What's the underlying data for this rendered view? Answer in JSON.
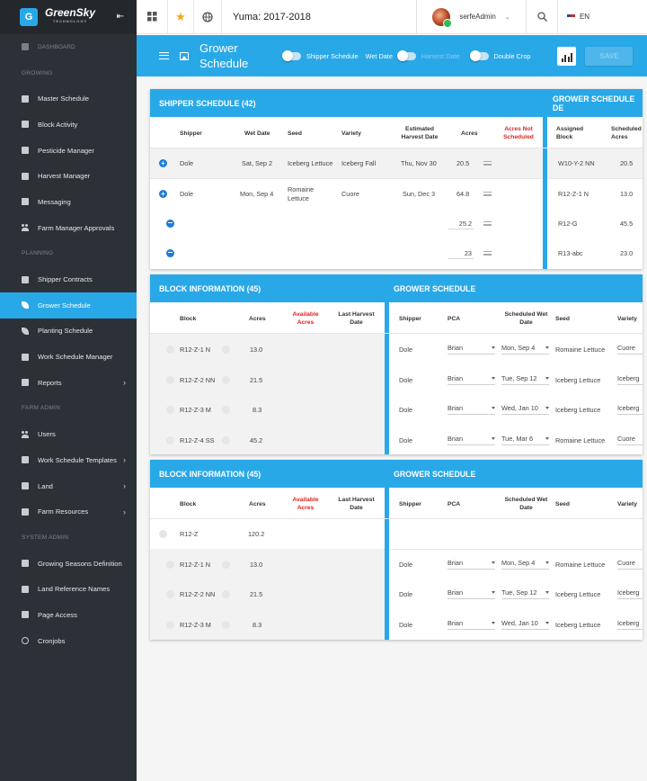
{
  "app": {
    "logo_letter": "G",
    "brand": "GreenSky",
    "brand_sub": "TECHNOLOGY",
    "season": "Yuma: 2017-2018",
    "user": "serfeAdmin",
    "language": "EN"
  },
  "sidebar": {
    "dashboard": "DASHBOARD",
    "sections": {
      "growing": "GROWING",
      "planning": "PLANNING",
      "farm_admin": "FARM ADMIN",
      "system_admin": "SYSTEM ADMIN"
    },
    "growing": [
      "Master Schedule",
      "Block Activity",
      "Pesticide Manager",
      "Harvest Manager",
      "Messaging",
      "Farm Manager Approvals"
    ],
    "planning": [
      "Shipper Contracts",
      "Grower Schedule",
      "Planting Schedule",
      "Work Schedule Manager",
      "Reports"
    ],
    "farm_admin": [
      "Users",
      "Work Schedule Templates",
      "Land",
      "Farm Resources"
    ],
    "system_admin": [
      "Growing Seasons Definition",
      "Land Reference Names",
      "Page Access",
      "Cronjobs"
    ]
  },
  "header": {
    "title_line1": "Grower",
    "title_line2": "Schedule",
    "toggles": {
      "shipper": "Shipper Schedule",
      "wet": "Wet Date",
      "harvest": "Harvest Date",
      "double": "Double Crop"
    },
    "save": "SAVE"
  },
  "shipper_panel": {
    "title": "SHIPPER SCHEDULE (42)",
    "right_title": "GROWER SCHEDULE DE",
    "cols": {
      "shipper": "Shipper",
      "wet_date": "Wet Date",
      "seed": "Seed",
      "variety": "Variety",
      "est_line1": "Estimated",
      "est_line2": "Harvest Date",
      "acres": "Acres",
      "ans_line1": "Acres Not",
      "ans_line2": "Scheduled",
      "ab_line1": "Assigned",
      "ab_line2": "Block",
      "sa_line1": "Scheduled",
      "sa_line2": "Acres"
    },
    "rows": [
      {
        "shipper": "Dole",
        "wet": "Sat, Sep 2",
        "seed": "Iceberg Lettuce",
        "seed2": "",
        "variety": "Iceberg Fall",
        "harvest": "Thu, Nov 30",
        "acres": "20.5",
        "block": "W10-Y-2 NN",
        "sched": "20.5"
      },
      {
        "shipper": "Dole",
        "wet": "Mon, Sep 4",
        "seed": "Romaine",
        "seed2": "Lettuce",
        "variety": "Cuore",
        "harvest": "Sun, Dec 3",
        "acres": "64.8",
        "block": "R12-Z-1 N",
        "sched": "13.0"
      },
      {
        "acres": "25.2",
        "block": "R12-G",
        "sched": "45.5"
      },
      {
        "acres": "23",
        "block": "R13-abc",
        "sched": "23.0"
      }
    ]
  },
  "block_panel_1": {
    "title": "BLOCK INFORMATION (45)",
    "right_title": "GROWER SCHEDULE",
    "cols": {
      "block": "Block",
      "acres": "Acres",
      "avail_line1": "Available",
      "avail_line2": "Acres",
      "lh_line1": "Last Harvest",
      "lh_line2": "Date",
      "shipper": "Shipper",
      "pca": "PCA",
      "swd_line1": "Scheduled Wet",
      "swd_line2": "Date",
      "seed": "Seed",
      "variety": "Variety"
    },
    "rows": [
      {
        "block": "R12-Z-1 N",
        "acres": "13.0",
        "shipper": "Dole",
        "pca": "Brian",
        "date": "Mon, Sep 4",
        "seed": "Romaine Lettuce",
        "variety": "Cuore"
      },
      {
        "block": "R12-Z-2 NN",
        "acres": "21.5",
        "shipper": "Dole",
        "pca": "Brian",
        "date": "Tue, Sep 12",
        "seed": "Iceberg Lettuce",
        "variety": "Iceberg"
      },
      {
        "block": "R12-Z-3 M",
        "acres": "8.3",
        "shipper": "Dole",
        "pca": "Brian",
        "date": "Wed, Jan 10",
        "seed": "Iceberg Lettuce",
        "variety": "Iceberg"
      },
      {
        "block": "R12-Z-4 SS",
        "acres": "45.2",
        "shipper": "Dole",
        "pca": "Brian",
        "date": "Tue, Mar 6",
        "seed": "Romaine Lettuce",
        "variety": "Cuore"
      }
    ]
  },
  "block_panel_2": {
    "title": "BLOCK INFORMATION (45)",
    "right_title": "GROWER SCHEDULE",
    "rows": [
      {
        "block": "R12-Z",
        "acres": "120.2"
      },
      {
        "block": "R12-Z-1 N",
        "acres": "13.0",
        "shipper": "Dole",
        "pca": "Brian",
        "date": "Mon, Sep 4",
        "seed": "Romaine Lettuce",
        "variety": "Cuore"
      },
      {
        "block": "R12-Z-2 NN",
        "acres": "21.5",
        "shipper": "Dole",
        "pca": "Brian",
        "date": "Tue, Sep 12",
        "seed": "Iceberg Lettuce",
        "variety": "Iceberg"
      },
      {
        "block": "R12-Z-3 M",
        "acres": "8.3",
        "shipper": "Dole",
        "pca": "Brian",
        "date": "Wed, Jan 10",
        "seed": "Iceberg Lettuce",
        "variety": "Iceberg"
      }
    ]
  },
  "colors": {
    "accent": "#29a8e8",
    "sidebar": "#2c3137",
    "alert": "#e02424",
    "add_button": "#1d7dd6"
  }
}
